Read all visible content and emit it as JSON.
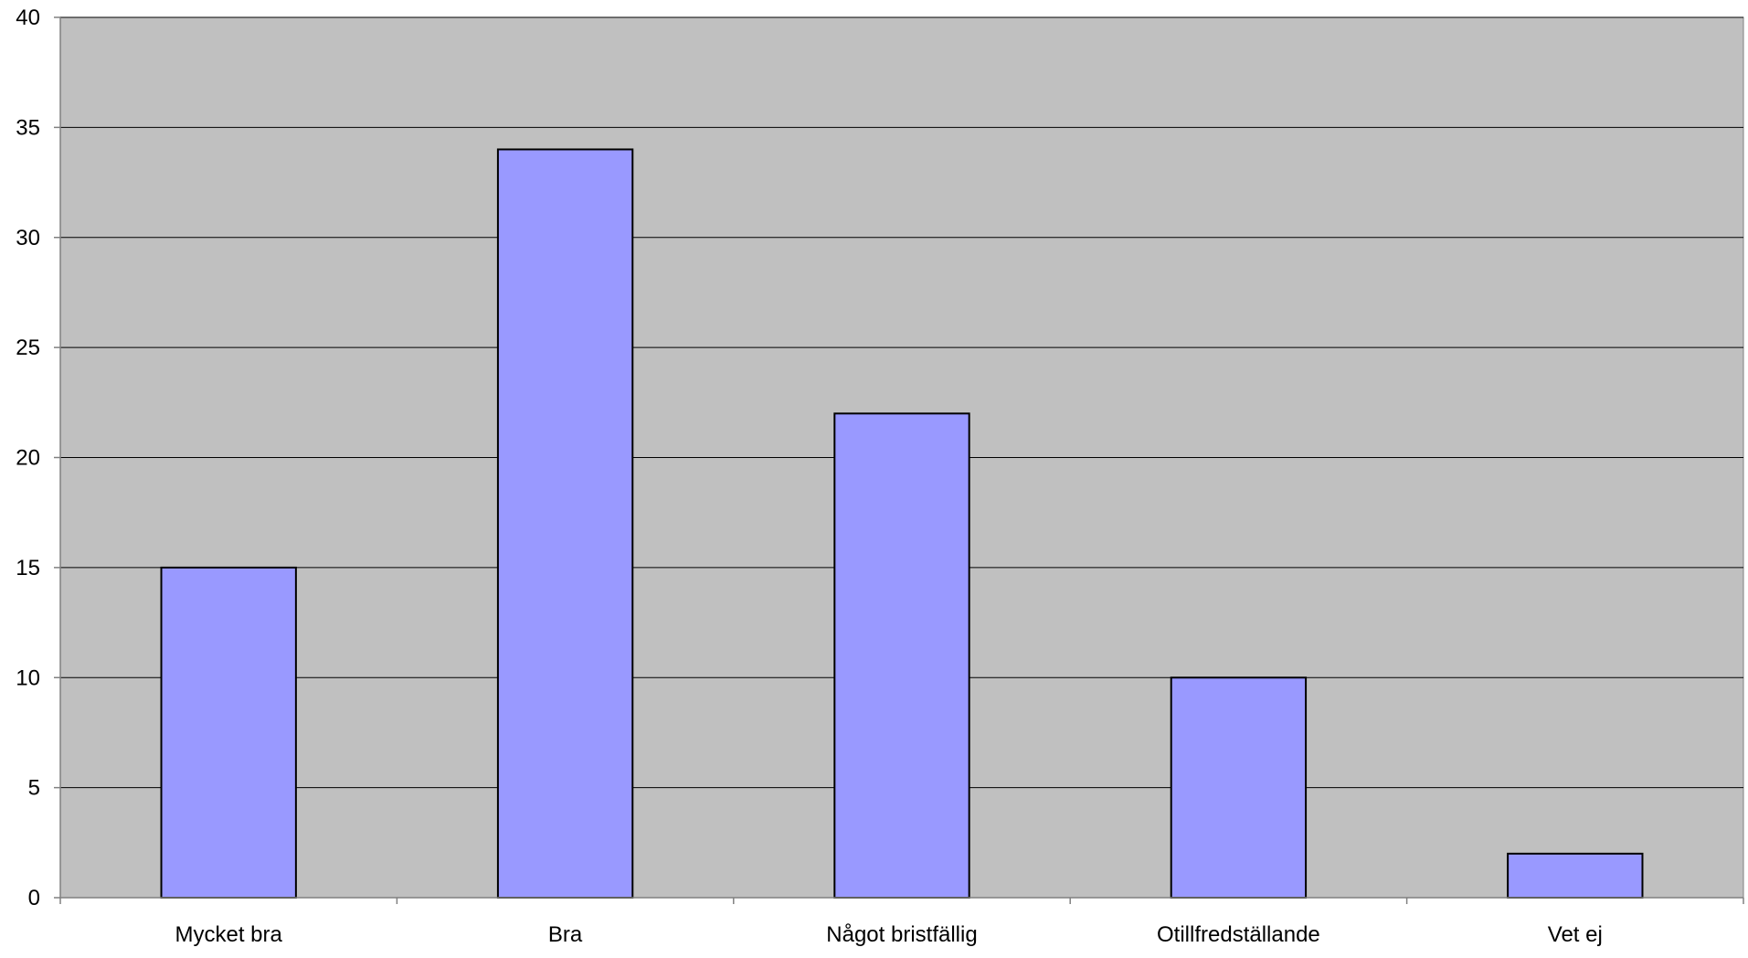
{
  "chart_data": {
    "type": "bar",
    "title": "",
    "xlabel": "",
    "ylabel": "",
    "categories": [
      "Mycket bra",
      "Bra",
      "Något bristfällig",
      "Otillfredställande",
      "Vet ej"
    ],
    "values": [
      15,
      34,
      22,
      10,
      2
    ],
    "ylim": [
      0,
      40
    ],
    "yticks": [
      "0",
      "5",
      "10",
      "15",
      "20",
      "25",
      "30",
      "35",
      "40"
    ],
    "grid": true,
    "legend": "none",
    "colors": {
      "plot_background": "#C0C0C0",
      "bar_fill": "#9999FF",
      "bar_stroke": "#000000",
      "gridline": "#000000",
      "axis": "#808080"
    }
  }
}
